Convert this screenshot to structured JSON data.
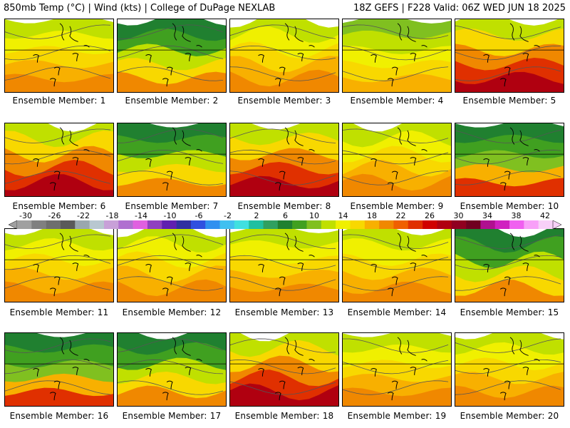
{
  "header": {
    "left_title": "850mb Temp (°C) | Wind (kts) | College of DuPage NEXLAB",
    "right_title": "18Z GEFS | F228 Valid: 06Z WED JUN 18 2025"
  },
  "members": [
    {
      "label": "Ensemble Member: 1",
      "style": "warm"
    },
    {
      "label": "Ensemble Member: 2",
      "style": "coolnorth"
    },
    {
      "label": "Ensemble Member: 3",
      "style": "warm"
    },
    {
      "label": "Ensemble Member: 4",
      "style": "mild"
    },
    {
      "label": "Ensemble Member: 5",
      "style": "hot"
    },
    {
      "label": "Ensemble Member: 6",
      "style": "hot"
    },
    {
      "label": "Ensemble Member: 7",
      "style": "coolnorth"
    },
    {
      "label": "Ensemble Member: 8",
      "style": "hot"
    },
    {
      "label": "Ensemble Member: 9",
      "style": "warm"
    },
    {
      "label": "Ensemble Member: 10",
      "style": "coolwest"
    },
    {
      "label": "Ensemble Member: 11",
      "style": "warm"
    },
    {
      "label": "Ensemble Member: 12",
      "style": "warm"
    },
    {
      "label": "Ensemble Member: 13",
      "style": "warm"
    },
    {
      "label": "Ensemble Member: 14",
      "style": "warm"
    },
    {
      "label": "Ensemble Member: 15",
      "style": "coolnorth"
    },
    {
      "label": "Ensemble Member: 16",
      "style": "coolwest"
    },
    {
      "label": "Ensemble Member: 17",
      "style": "coolnorth"
    },
    {
      "label": "Ensemble Member: 18",
      "style": "hot"
    },
    {
      "label": "Ensemble Member: 19",
      "style": "warm"
    },
    {
      "label": "Ensemble Member: 20",
      "style": "warm"
    }
  ],
  "colorbar": {
    "tick_labels": [
      "-30",
      "-26",
      "-22",
      "-18",
      "-14",
      "-10",
      "-6",
      "-2",
      "2",
      "6",
      "10",
      "14",
      "18",
      "22",
      "26",
      "30",
      "34",
      "38",
      "42"
    ],
    "colors": [
      "#a0a0a0",
      "#808080",
      "#6e6e6e",
      "#5a5a5a",
      "#9aa7ae",
      "#b8c7d0",
      "#c8a0d8",
      "#b070d0",
      "#e060e0",
      "#9040c0",
      "#6020b0",
      "#3030a0",
      "#3050e0",
      "#3090f0",
      "#40c0f0",
      "#40e0e0",
      "#20c0a0",
      "#30a060",
      "#208030",
      "#40a020",
      "#80c020",
      "#c0e000",
      "#f0f000",
      "#f8d800",
      "#f8b000",
      "#f08800",
      "#f06000",
      "#e03000",
      "#d00000",
      "#b00010",
      "#900020",
      "#700020",
      "#b01090",
      "#d020c0",
      "#f060f0",
      "#f8a0f8",
      "#f8d0f8"
    ]
  }
}
